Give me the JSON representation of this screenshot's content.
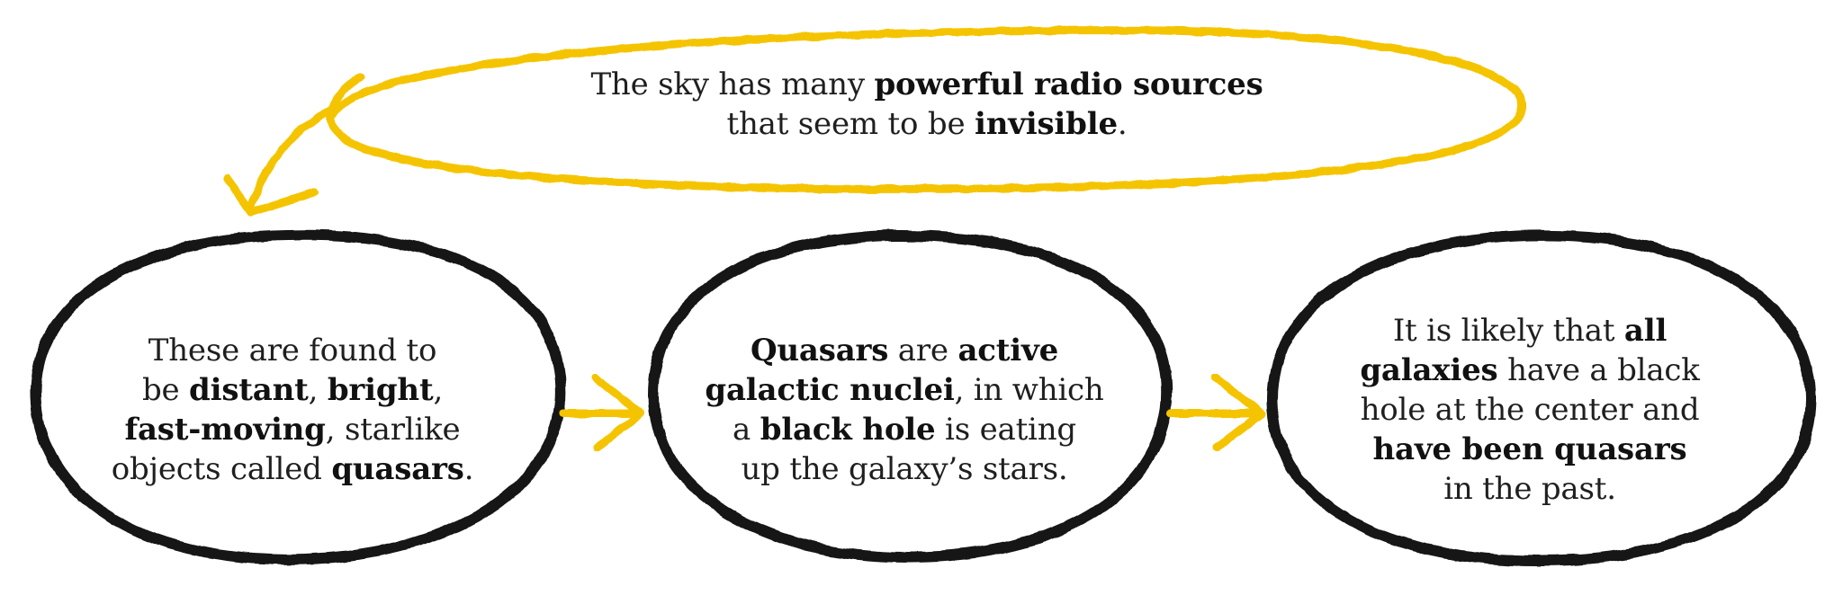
{
  "colors": {
    "accent": "#f5c400",
    "outline": "#121212",
    "text": "#1f1f1f",
    "background": "#ffffff"
  },
  "nodes": {
    "top": {
      "lines": [
        [
          {
            "text": "The sky has many ",
            "bold": false
          },
          {
            "text": "powerful radio sources",
            "bold": true
          }
        ],
        [
          {
            "text": "that seem to be ",
            "bold": false
          },
          {
            "text": "invisible",
            "bold": true
          },
          {
            "text": ".",
            "bold": false
          }
        ]
      ]
    },
    "left": {
      "lines": [
        [
          {
            "text": "These are found to",
            "bold": false
          }
        ],
        [
          {
            "text": "be ",
            "bold": false
          },
          {
            "text": "distant",
            "bold": true
          },
          {
            "text": ", ",
            "bold": false
          },
          {
            "text": "bright",
            "bold": true
          },
          {
            "text": ",",
            "bold": false
          }
        ],
        [
          {
            "text": "fast-moving",
            "bold": true
          },
          {
            "text": ", starlike",
            "bold": false
          }
        ],
        [
          {
            "text": "objects called ",
            "bold": false
          },
          {
            "text": "quasars",
            "bold": true
          },
          {
            "text": ".",
            "bold": false
          }
        ]
      ]
    },
    "middle": {
      "lines": [
        [
          {
            "text": "Quasars",
            "bold": true
          },
          {
            "text": " are ",
            "bold": false
          },
          {
            "text": "active",
            "bold": true
          }
        ],
        [
          {
            "text": "galactic nuclei",
            "bold": true
          },
          {
            "text": ", in which",
            "bold": false
          }
        ],
        [
          {
            "text": "a ",
            "bold": false
          },
          {
            "text": "black hole",
            "bold": true
          },
          {
            "text": " is eating",
            "bold": false
          }
        ],
        [
          {
            "text": "up the galaxy’s stars.",
            "bold": false
          }
        ]
      ]
    },
    "right": {
      "lines": [
        [
          {
            "text": "It is likely that ",
            "bold": false
          },
          {
            "text": "all",
            "bold": true
          }
        ],
        [
          {
            "text": "galaxies",
            "bold": true
          },
          {
            "text": " have a black",
            "bold": false
          }
        ],
        [
          {
            "text": "hole at the center and",
            "bold": false
          }
        ],
        [
          {
            "text": "have been quasars",
            "bold": true
          }
        ],
        [
          {
            "text": "in the past.",
            "bold": false
          }
        ]
      ]
    }
  }
}
